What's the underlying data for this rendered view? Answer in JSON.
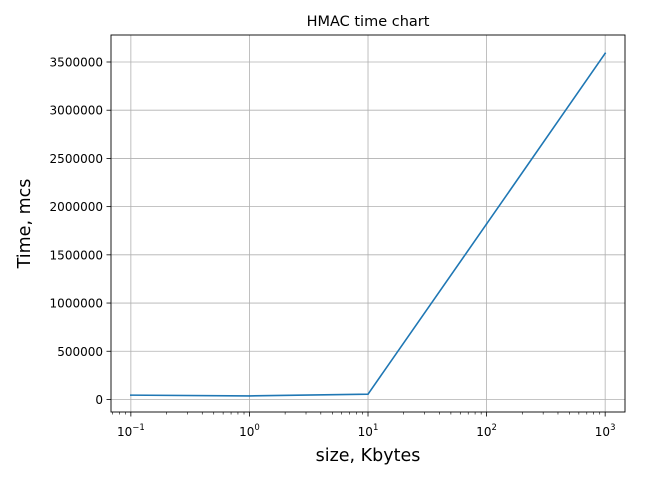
{
  "chart_data": {
    "type": "line",
    "title": "HMAC time chart",
    "xlabel": "size, Kbytes",
    "ylabel": "Time, mcs",
    "xscale": "log",
    "xlim": [
      0.068,
      1470
    ],
    "ylim": [
      -130000,
      3780000
    ],
    "grid": true,
    "line_color": "#1f77b4",
    "x": [
      0.1,
      1,
      10,
      100,
      1000
    ],
    "y": [
      45000,
      37000,
      55000,
      1820000,
      3590000
    ],
    "x_ticks": [
      {
        "value": 0.1,
        "base": "10",
        "exp": "−1"
      },
      {
        "value": 1,
        "base": "10",
        "exp": "0"
      },
      {
        "value": 10,
        "base": "10",
        "exp": "1"
      },
      {
        "value": 100,
        "base": "10",
        "exp": "2"
      },
      {
        "value": 1000,
        "base": "10",
        "exp": "3"
      }
    ],
    "y_ticks": [
      {
        "value": 0,
        "label": "0"
      },
      {
        "value": 500000,
        "label": "500000"
      },
      {
        "value": 1000000,
        "label": "1000000"
      },
      {
        "value": 1500000,
        "label": "1500000"
      },
      {
        "value": 2000000,
        "label": "2000000"
      },
      {
        "value": 2500000,
        "label": "2500000"
      },
      {
        "value": 3000000,
        "label": "3000000"
      },
      {
        "value": 3500000,
        "label": "3500000"
      }
    ]
  }
}
